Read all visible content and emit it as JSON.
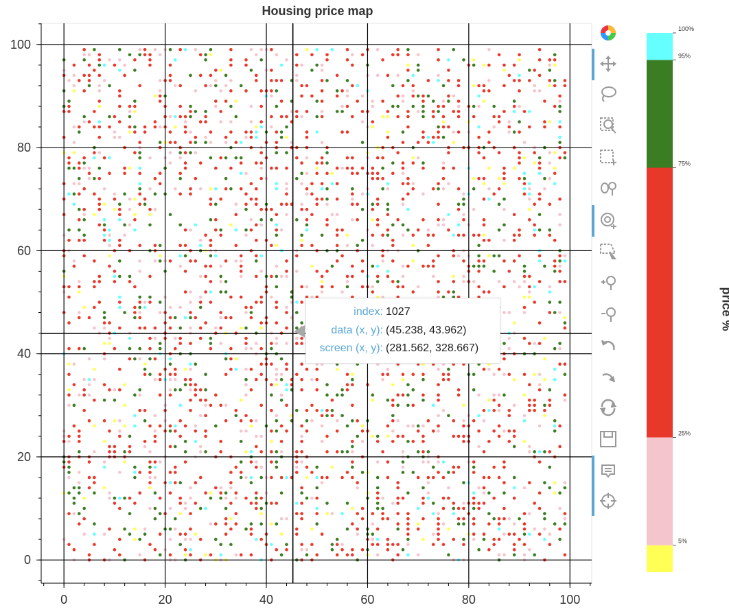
{
  "chart_data": {
    "type": "scatter",
    "title": "Housing price map",
    "xlabel": "",
    "ylabel": "",
    "xlim": [
      -4.5,
      104.3
    ],
    "ylim": [
      -4.5,
      104.1
    ],
    "x_ticks": [
      0,
      20,
      40,
      60,
      80,
      100
    ],
    "y_ticks": [
      0,
      20,
      40,
      60,
      80,
      100
    ],
    "x_tick_labels": [
      "0",
      "20",
      "40",
      "60",
      "80",
      "100"
    ],
    "y_tick_labels": [
      "0",
      "20",
      "40",
      "60",
      "80",
      "100"
    ],
    "grid": true,
    "grid_x_lines": [
      0,
      20,
      40,
      45.238,
      60,
      80,
      100
    ],
    "grid_y_lines": [
      0,
      20,
      40,
      43.962,
      60,
      80,
      100
    ],
    "crosshair": {
      "x": 45.238,
      "y": 43.962
    },
    "points_domain": {
      "x_range": [
        0,
        99
      ],
      "y_range": [
        0,
        99
      ],
      "step": 1,
      "count_approx": 2500
    },
    "category_colors": {
      "0-5%": "#ffff55",
      "5-25%": "#f5c5cd",
      "25-75%": "#e8382a",
      "75-95%": "#3a7d22",
      "95-100%": "#66ffff"
    },
    "category_weights": [
      0.05,
      0.2,
      0.5,
      0.2,
      0.05
    ]
  },
  "colorbar": {
    "title": "price %",
    "stops": [
      {
        "label": "5%",
        "value": 5
      },
      {
        "label": "25%",
        "value": 25
      },
      {
        "label": "75%",
        "value": 75
      },
      {
        "label": "95%",
        "value": 95
      },
      {
        "label": "100%",
        "value": 100
      }
    ],
    "segments": [
      {
        "from": 0,
        "to": 5,
        "color": "#ffff55"
      },
      {
        "from": 5,
        "to": 25,
        "color": "#f5c5cd"
      },
      {
        "from": 25,
        "to": 75,
        "color": "#e8382a"
      },
      {
        "from": 75,
        "to": 95,
        "color": "#3a7d22"
      },
      {
        "from": 95,
        "to": 100,
        "color": "#66ffff"
      }
    ]
  },
  "tooltip": {
    "index_label": "index:",
    "index_value": "1027",
    "data_label": "data (x, y):",
    "data_value": "(45.238, 43.962)",
    "screen_label": "screen (x, y):",
    "screen_value": "(281.562, 328.667)"
  },
  "toolbar": {
    "tools": [
      {
        "name": "bokeh-logo-icon",
        "active": false
      },
      {
        "name": "pan-icon",
        "active": true
      },
      {
        "name": "lasso-select-icon",
        "active": false
      },
      {
        "name": "box-zoom-icon",
        "active": false
      },
      {
        "name": "box-select-icon",
        "active": false
      },
      {
        "name": "zoom-in-out-icon",
        "active": false
      },
      {
        "name": "wheel-zoom-icon",
        "active": true
      },
      {
        "name": "poly-select-icon",
        "active": false
      },
      {
        "name": "zoom-in-icon",
        "active": false
      },
      {
        "name": "zoom-out-icon",
        "active": false
      },
      {
        "name": "undo-icon",
        "active": false
      },
      {
        "name": "redo-icon",
        "active": false
      },
      {
        "name": "reset-icon",
        "active": false
      },
      {
        "name": "save-icon",
        "active": false
      },
      {
        "name": "hover-icon",
        "active": true
      },
      {
        "name": "crosshair-icon",
        "active": true
      }
    ]
  },
  "colors": {
    "accent": "#5aa7d6",
    "grid": "#000000",
    "text": "#333333"
  }
}
